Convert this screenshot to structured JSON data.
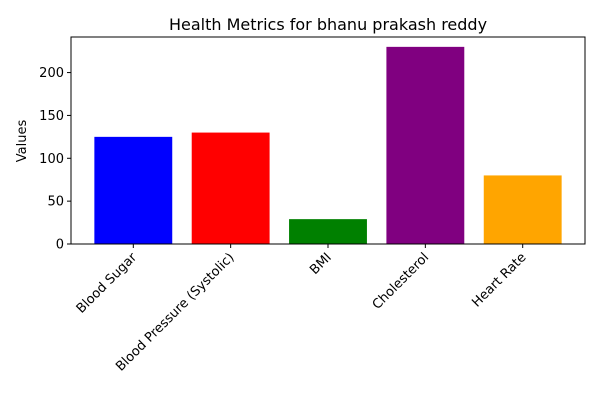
{
  "chart_data": {
    "type": "bar",
    "title": "Health Metrics for bhanu prakash reddy",
    "xlabel": "",
    "ylabel": "Values",
    "categories": [
      "Blood Sugar",
      "Blood Pressure (Systolic)",
      "BMI",
      "Cholesterol",
      "Heart Rate"
    ],
    "values": [
      125,
      130,
      29,
      230,
      80
    ],
    "colors": [
      "#0000ff",
      "#ff0000",
      "#008000",
      "#800080",
      "#ffa500"
    ],
    "ylim": [
      0,
      241.5
    ],
    "yticks": [
      0,
      50,
      100,
      150,
      200
    ],
    "grid": false,
    "legend": "none"
  }
}
